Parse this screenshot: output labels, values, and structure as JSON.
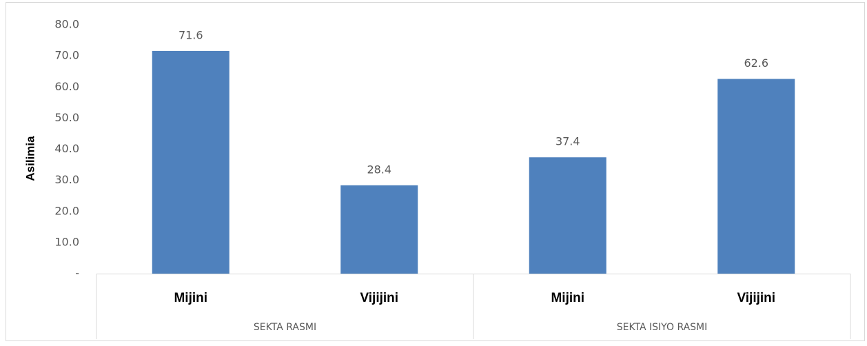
{
  "chart_data": {
    "type": "bar",
    "y_label": "Asilimia",
    "categories": [
      "Mijini",
      "Vijijini",
      "Mijini",
      "Vijijini"
    ],
    "groups": [
      "SEKTA RASMI",
      "SEKTA ISIYO RASMI"
    ],
    "values": [
      71.6,
      28.4,
      37.4,
      62.6
    ],
    "color": "#4f81bd",
    "ylim": [
      0,
      80
    ],
    "yticks": [
      {
        "value": 0,
        "label": "-"
      },
      {
        "value": 10,
        "label": "10.0"
      },
      {
        "value": 20,
        "label": "20.0"
      },
      {
        "value": 30,
        "label": "30.0"
      },
      {
        "value": 40,
        "label": "40.0"
      },
      {
        "value": 50,
        "label": "50.0"
      },
      {
        "value": 60,
        "label": "60.0"
      },
      {
        "value": 70,
        "label": "70.0"
      },
      {
        "value": 80,
        "label": "80.0"
      }
    ],
    "grid": false
  }
}
